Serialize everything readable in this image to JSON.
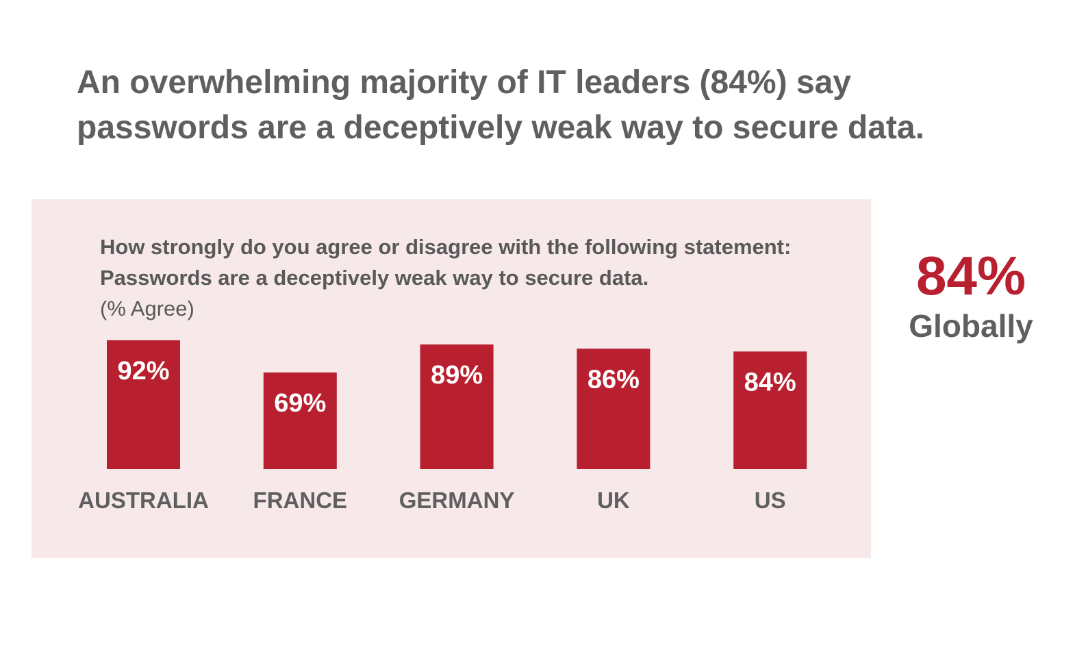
{
  "headline": {
    "line1": "An overwhelming majority of IT leaders (84%) say",
    "line2": "passwords are a deceptively weak way to secure data."
  },
  "question": {
    "line1": "How strongly do you agree or disagree with the following statement:",
    "line2": "Passwords are a deceptively weak way to secure data.",
    "unit": "(% Agree)"
  },
  "global_stat": {
    "value": "84%",
    "label": "Globally"
  },
  "colors": {
    "bar": "#b81f2f",
    "panel": "#f7e8ea",
    "text": "#5f5f5f",
    "accent": "#b81f2f"
  },
  "chart_data": {
    "type": "bar",
    "categories": [
      "AUSTRALIA",
      "FRANCE",
      "GERMANY",
      "UK",
      "US"
    ],
    "values": [
      92,
      69,
      89,
      86,
      84
    ],
    "value_labels": [
      "92%",
      "69%",
      "89%",
      "86%",
      "84%"
    ],
    "title": "",
    "xlabel": "",
    "ylabel": "",
    "ylim": [
      0,
      92
    ],
    "grid": false,
    "legend": "none"
  }
}
